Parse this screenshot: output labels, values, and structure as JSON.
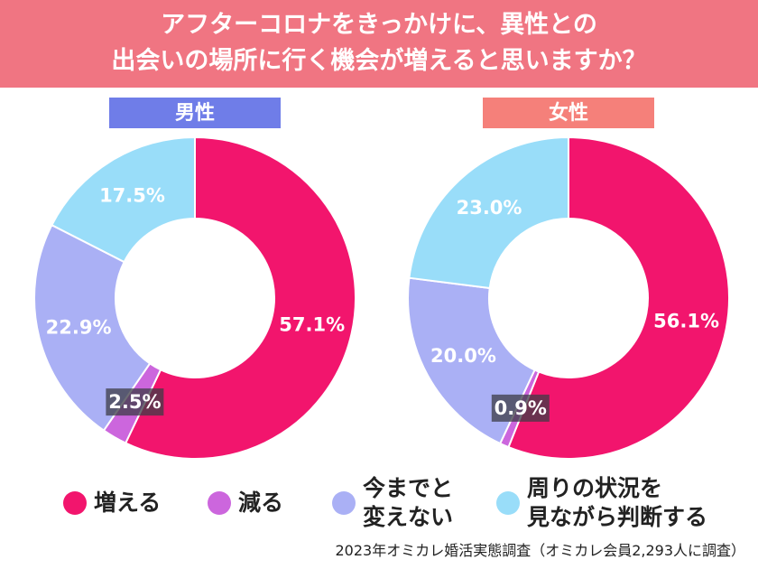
{
  "header": {
    "title": "アフターコロナをきっかけに、異性との\n出会いの場所に行く機会が増えると思いますか？"
  },
  "chart_data": [
    {
      "type": "donut",
      "title": "男性",
      "title_color": "#6f7de8",
      "categories": [
        "増える",
        "減る",
        "今までと\n変えない",
        "周りの状況を\n見ながら判断する"
      ],
      "values": [
        57.1,
        2.5,
        22.9,
        17.5
      ],
      "value_labels": [
        "57.1%",
        "2.5%",
        "22.9%",
        "17.5%"
      ],
      "colors": [
        "#f2156d",
        "#cc66dd",
        "#aab0f5",
        "#99ddf9"
      ]
    },
    {
      "type": "donut",
      "title": "女性",
      "title_color": "#f5807a",
      "categories": [
        "増える",
        "減る",
        "今までと\n変えない",
        "周りの状況を\n見ながら判断する"
      ],
      "values": [
        56.1,
        0.9,
        20.0,
        23.0
      ],
      "value_labels": [
        "56.1%",
        "0.9%",
        "20.0%",
        "23.0%"
      ],
      "colors": [
        "#f2156d",
        "#cc66dd",
        "#aab0f5",
        "#99ddf9"
      ]
    }
  ],
  "footer": {
    "source": "2023年オミカレ婚活実態調査（オミカレ会員2,293人に調査）"
  }
}
